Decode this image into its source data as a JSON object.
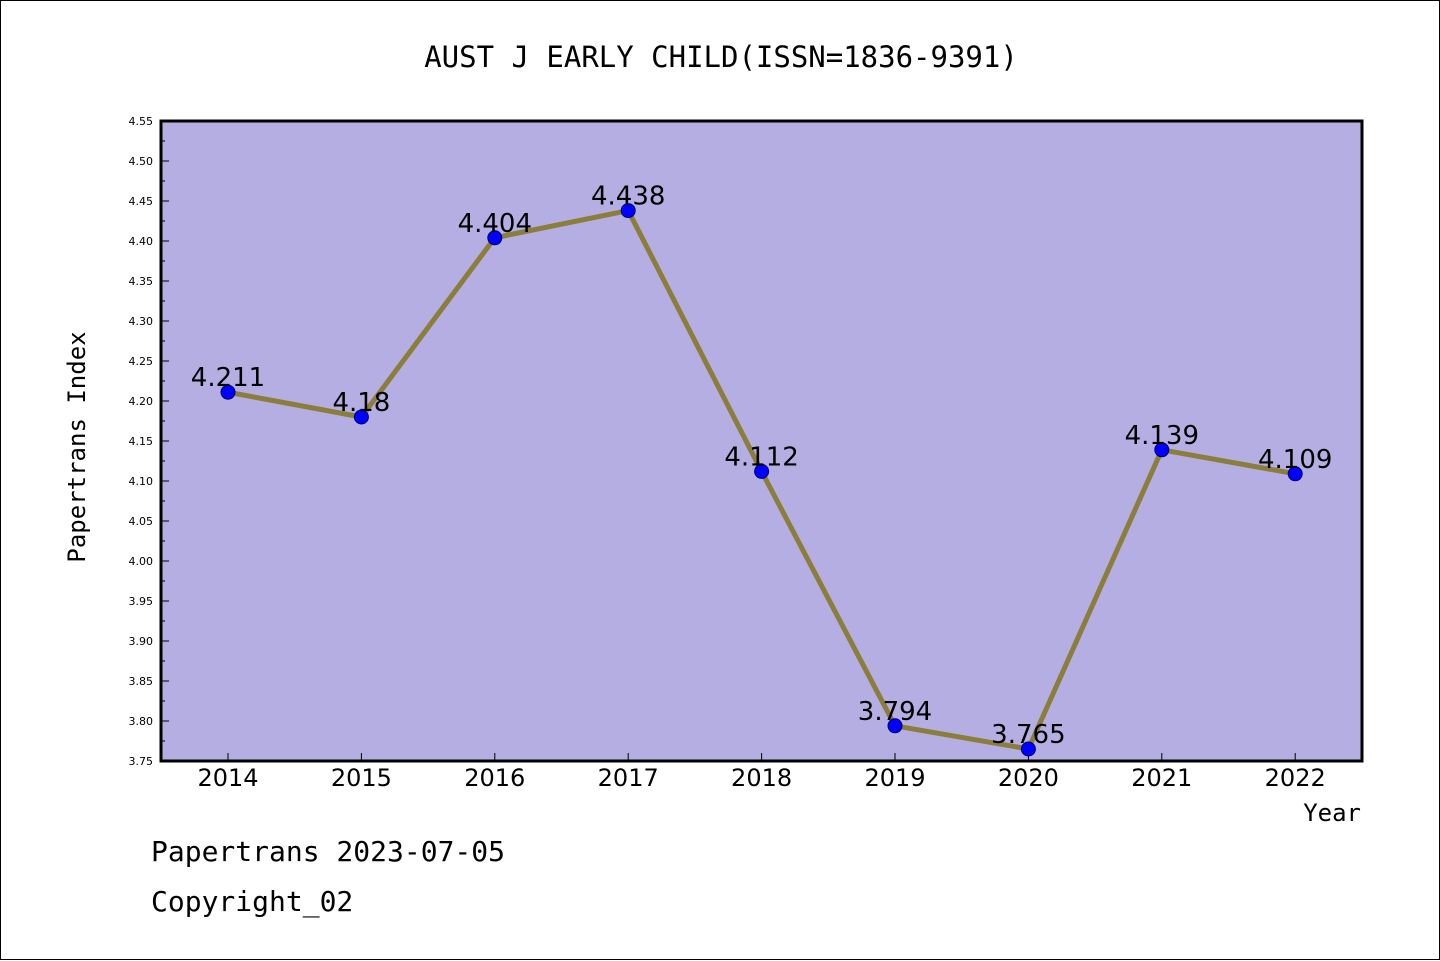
{
  "chart_data": {
    "type": "line",
    "title": "AUST J EARLY CHILD(ISSN=1836-9391)",
    "xlabel": "Year",
    "ylabel": "Papertrans Index",
    "categories": [
      "2014",
      "2015",
      "2016",
      "2017",
      "2018",
      "2019",
      "2020",
      "2021",
      "2022"
    ],
    "series": [
      {
        "values": [
          4.211,
          4.18,
          4.404,
          4.438,
          4.112,
          3.794,
          3.765,
          4.139,
          4.109
        ],
        "labels": [
          "4.211",
          "4.18",
          "4.404",
          "4.438",
          "4.112",
          "3.794",
          "3.765",
          "4.139",
          "4.109"
        ]
      }
    ],
    "ylim": [
      3.75,
      4.55
    ],
    "yticks": [
      "3.75",
      "3.80",
      "3.85",
      "3.90",
      "3.95",
      "4.00",
      "4.05",
      "4.10",
      "4.15",
      "4.20",
      "4.25",
      "4.30",
      "4.35",
      "4.40",
      "4.45",
      "4.50",
      "4.55"
    ],
    "grid": false,
    "legend": "none",
    "colors": {
      "plot_background": "#b4aee2",
      "line": "#8b7d3a",
      "marker": "#0000ff"
    }
  },
  "footer": {
    "date_text": "Papertrans 2023-07-05",
    "copyright_text": "Copyright_02"
  }
}
